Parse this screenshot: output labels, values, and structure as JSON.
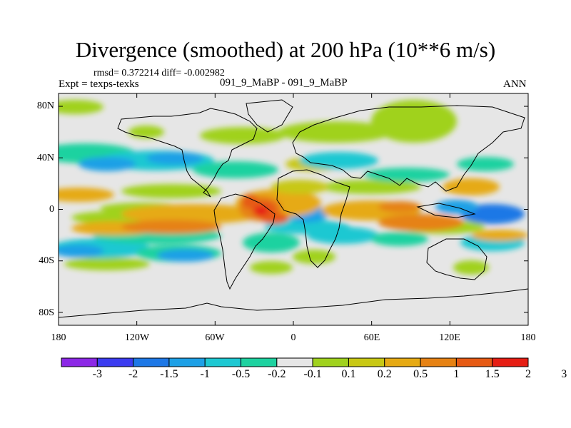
{
  "title": "Divergence (smoothed) at 200 hPa (10**6 m/s)",
  "stats": "rmsd= 0.372214 diff= -0.002982",
  "expt": "Expt = texps-texks",
  "cases": "091_9_MaBP - 091_9_MaBP",
  "season": "ANN",
  "lat_labels": [
    "80N",
    "40N",
    "0",
    "40S",
    "80S"
  ],
  "lon_labels": [
    "180",
    "120W",
    "60W",
    "0",
    "60E",
    "120E",
    "180"
  ],
  "colorbar": {
    "labels": [
      "-3",
      "-2",
      "-1.5",
      "-1",
      "-0.5",
      "-0.2",
      "-0.1",
      "0.1",
      "0.2",
      "0.5",
      "1",
      "1.5",
      "2",
      "3"
    ],
    "colors": [
      "#8c28e6",
      "#3c3cf0",
      "#1e78e6",
      "#1ea0e6",
      "#1ec8d2",
      "#1ed2a0",
      "#e6e6e6",
      "#a0d21e",
      "#c8c814",
      "#e6aa14",
      "#e68214",
      "#e65a14",
      "#e61e14"
    ]
  },
  "chart_data": {
    "type": "contour-map",
    "variable": "Divergence (smoothed) at 200 hPa",
    "units": "10**6 m/s",
    "levels": [
      -3,
      -2,
      -1.5,
      -1,
      -0.5,
      -0.2,
      -0.1,
      0.1,
      0.2,
      0.5,
      1,
      1.5,
      2,
      3
    ],
    "lon_range": [
      -180,
      180
    ],
    "lat_range": [
      -90,
      90
    ],
    "features": [
      {
        "region": "equatorial tropical Atlantic / S. America (~30W, 0)",
        "approx_value": 3
      },
      {
        "region": "central Pacific equatorial band (~140W-100W, 10S)",
        "approx_value": 1
      },
      {
        "region": "Indian Ocean band (~60E-100E, 5S)",
        "approx_value": 1
      },
      {
        "region": "West Pacific (~150E, 0-10N)",
        "approx_value": -1.5
      },
      {
        "region": "Pacific northern mid-latitudes (~150W-90W, 40N)",
        "approx_value": -1
      },
      {
        "region": "Southern Ocean band (~170W-90W, 40S)",
        "approx_value": -1
      }
    ]
  }
}
